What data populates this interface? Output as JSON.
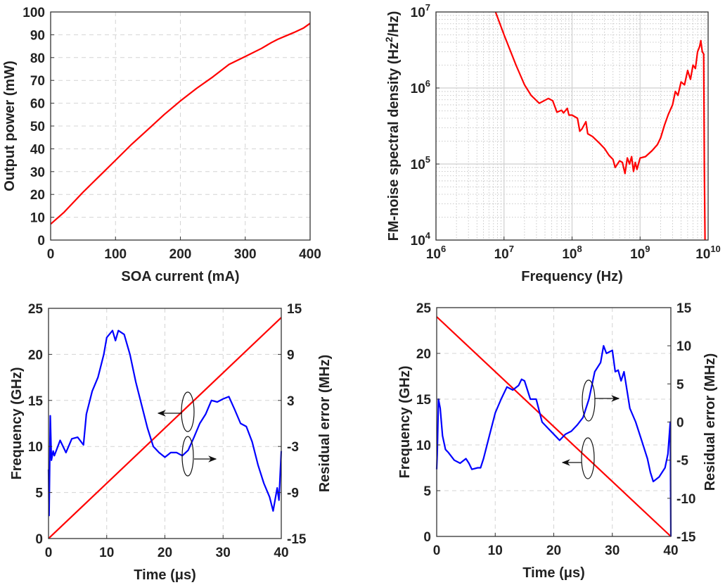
{
  "chart_data": [
    {
      "type": "line",
      "title": "",
      "xlabel": "SOA current (mA)",
      "ylabel": "Output  power (mW)",
      "xscale": "linear",
      "yscale": "linear",
      "xlim": [
        0,
        400
      ],
      "ylim": [
        0,
        100
      ],
      "xticks": [
        0,
        100,
        200,
        300,
        400
      ],
      "xtick_labels": [
        "0",
        "100",
        "200",
        "300",
        "400"
      ],
      "yticks": [
        0,
        10,
        20,
        30,
        40,
        50,
        60,
        70,
        80,
        90,
        100
      ],
      "ytick_labels": [
        "0",
        "10",
        "20",
        "30",
        "40",
        "50",
        "60",
        "70",
        "80",
        "90",
        "100"
      ],
      "grid": "dashed",
      "series": [
        {
          "name": "Output power",
          "axis": "left",
          "color": "#ff0000",
          "x": [
            0,
            20,
            50,
            75,
            100,
            125,
            150,
            175,
            200,
            225,
            250,
            275,
            300,
            325,
            340,
            350,
            375,
            390,
            400
          ],
          "y": [
            7,
            12,
            21,
            28,
            35,
            42,
            48.5,
            55,
            61,
            66.5,
            71.5,
            77,
            80.5,
            84,
            86.5,
            88,
            91,
            93,
            95
          ]
        }
      ]
    },
    {
      "type": "line",
      "title": "",
      "xlabel": "Frequency (Hz)",
      "ylabel_parts": [
        "FM-noise spectral density (Hz",
        "2",
        "/Hz)"
      ],
      "xscale": "log",
      "yscale": "log",
      "xlim": [
        1000000.0,
        10000000000.0
      ],
      "ylim": [
        10000.0,
        10000000.0
      ],
      "xticks": [
        1000000.0,
        10000000.0,
        100000000.0,
        1000000000.0,
        10000000000.0
      ],
      "xtick_labels": [
        {
          "base": "10",
          "exp": "6"
        },
        {
          "base": "10",
          "exp": "7"
        },
        {
          "base": "10",
          "exp": "8"
        },
        {
          "base": "10",
          "exp": "9"
        },
        {
          "base": "10",
          "exp": "10"
        }
      ],
      "yticks": [
        10000.0,
        100000.0,
        1000000.0,
        10000000.0
      ],
      "ytick_labels": [
        {
          "base": "10",
          "exp": "4"
        },
        {
          "base": "10",
          "exp": "5"
        },
        {
          "base": "10",
          "exp": "6"
        },
        {
          "base": "10",
          "exp": "7"
        }
      ],
      "grid": "log",
      "series": [
        {
          "name": "FM-noise PSD",
          "axis": "left",
          "color": "#ff0000",
          "x": [
            7500000.0,
            10000000.0,
            15000000.0,
            20000000.0,
            25000000.0,
            33000000.0,
            45000000.0,
            52000000.0,
            60000000.0,
            70000000.0,
            75000000.0,
            85000000.0,
            90000000.0,
            100000000.0,
            120000000.0,
            130000000.0,
            140000000.0,
            160000000.0,
            170000000.0,
            200000000.0,
            250000000.0,
            300000000.0,
            350000000.0,
            400000000.0,
            430000000.0,
            500000000.0,
            550000000.0,
            600000000.0,
            650000000.0,
            700000000.0,
            750000000.0,
            800000000.0,
            850000000.0,
            900000000.0,
            1000000000.0,
            1200000000.0,
            1500000000.0,
            1800000000.0,
            2000000000.0,
            2300000000.0,
            2600000000.0,
            3000000000.0,
            3300000000.0,
            3600000000.0,
            4000000000.0,
            4500000000.0,
            5000000000.0,
            5500000000.0,
            6000000000.0,
            6500000000.0,
            7000000000.0,
            7500000000.0,
            7800000000.0,
            8200000000.0,
            8600000000.0,
            8800000000.0,
            9000000000.0
          ],
          "y": [
            10000000.0,
            5000000.0,
            2000000.0,
            1100000.0,
            800000.0,
            630000.0,
            730000.0,
            680000.0,
            480000.0,
            510000.0,
            470000.0,
            540000.0,
            440000.0,
            440000.0,
            400000.0,
            270000.0,
            290000.0,
            360000.0,
            250000.0,
            230000.0,
            190000.0,
            160000.0,
            130000.0,
            115000.0,
            90000.0,
            110000.0,
            105000.0,
            75000.0,
            120000.0,
            100000.0,
            125000.0,
            80000.0,
            105000.0,
            85000.0,
            120000.0,
            125000.0,
            150000.0,
            180000.0,
            220000.0,
            330000.0,
            450000.0,
            600000.0,
            900000.0,
            800000.0,
            1200000.0,
            1100000.0,
            1700000.0,
            1300000.0,
            2000000.0,
            1800000.0,
            3000000.0,
            3500000.0,
            4200000.0,
            3000000.0,
            2800000.0,
            100000.0,
            10000.0
          ]
        }
      ]
    },
    {
      "type": "line",
      "title": "",
      "xlabel": "Time (μs)",
      "ylabel": "Frequency (GHz)",
      "ylabel_right": "Residual error (MHz)",
      "xscale": "linear",
      "yscale": "linear",
      "xlim": [
        0,
        40
      ],
      "ylim": [
        0,
        25
      ],
      "ylim_right": [
        -15,
        15
      ],
      "xticks": [
        0,
        10,
        20,
        30,
        40
      ],
      "xtick_labels": [
        "0",
        "10",
        "20",
        "30",
        "40"
      ],
      "yticks": [
        0,
        5,
        10,
        15,
        20,
        25
      ],
      "ytick_labels": [
        "0",
        "5",
        "10",
        "15",
        "20",
        "25"
      ],
      "yticks_right": [
        -15,
        -9,
        -3,
        3,
        9,
        15
      ],
      "ytick_labels_right": [
        "-15",
        "-9",
        "-3",
        "3",
        "9",
        "15"
      ],
      "grid": "dashed",
      "series": [
        {
          "name": "Frequency",
          "axis": "left",
          "color": "#ff0000",
          "x": [
            0,
            40
          ],
          "y": [
            0,
            24
          ]
        },
        {
          "name": "Residual error",
          "axis": "right",
          "color": "#0000ff",
          "x": [
            0,
            0.1,
            0.3,
            0.5,
            0.8,
            1,
            2,
            3,
            4,
            5,
            6,
            6.5,
            7.5,
            8.5,
            9.5,
            10,
            11,
            11.5,
            12,
            13,
            14,
            15,
            16,
            17,
            18,
            19,
            20,
            21,
            22,
            23,
            24,
            25,
            26,
            27,
            28,
            29,
            30,
            31,
            32,
            33,
            34,
            35,
            36,
            37,
            38,
            38.6,
            39.3,
            39.6,
            40
          ],
          "y": [
            -6,
            -12,
            1,
            -4.8,
            -3.6,
            -4.2,
            -2.2,
            -3.8,
            -2,
            -1.8,
            -2.8,
            1.2,
            4.2,
            6,
            9,
            11.2,
            12.1,
            10.8,
            12.1,
            11.6,
            9,
            5.4,
            2.4,
            -0.6,
            -3,
            -3.8,
            -4.4,
            -3.8,
            -3.8,
            -4.2,
            -3.5,
            -1.8,
            0,
            1.2,
            3,
            2.8,
            3.2,
            3.5,
            1.8,
            0,
            -0.4,
            -2.4,
            -5.4,
            -7.8,
            -9.6,
            -11.4,
            -8.4,
            -10,
            -3.6
          ]
        }
      ],
      "annotations": [
        "ellipse-arrow-left (Frequency axis)",
        "ellipse-arrow-right (Residual error axis)"
      ]
    },
    {
      "type": "line",
      "title": "",
      "xlabel": "Time (μs)",
      "ylabel": "Frequency (GHz)",
      "ylabel_right": "Residual error (MHz)",
      "xscale": "linear",
      "yscale": "linear",
      "xlim": [
        0,
        40
      ],
      "ylim": [
        0,
        25
      ],
      "ylim_right": [
        -15,
        15
      ],
      "xticks": [
        0,
        10,
        20,
        30,
        40
      ],
      "xtick_labels": [
        "0",
        "10",
        "20",
        "30",
        "40"
      ],
      "yticks": [
        0,
        5,
        10,
        15,
        20,
        25
      ],
      "ytick_labels": [
        "0",
        "5",
        "10",
        "15",
        "20",
        "25"
      ],
      "yticks_right": [
        -15,
        -10,
        -5,
        0,
        5,
        10,
        15
      ],
      "ytick_labels_right": [
        "-15",
        "-10",
        "-5",
        "0",
        "5",
        "10",
        "15"
      ],
      "grid": "dashed",
      "series": [
        {
          "name": "Frequency",
          "axis": "left",
          "color": "#ff0000",
          "x": [
            0,
            40
          ],
          "y": [
            24,
            0
          ]
        },
        {
          "name": "Residual error",
          "axis": "right",
          "color": "#0000ff",
          "x": [
            0,
            0.1,
            0.3,
            0.6,
            1,
            1.5,
            2,
            3,
            4,
            5,
            5.5,
            6,
            7,
            7.5,
            8,
            9,
            10,
            11,
            12,
            13,
            14,
            14.5,
            15,
            16,
            17,
            18,
            19,
            20,
            21,
            22,
            23,
            24,
            25,
            26,
            27,
            28,
            28.5,
            29,
            30,
            30.5,
            31,
            31.5,
            32,
            33,
            34,
            35,
            36,
            36.5,
            37,
            38,
            39,
            39.5,
            39.9,
            40
          ],
          "y": [
            -6.2,
            -4.2,
            3,
            1.8,
            -1.8,
            -3.6,
            -4,
            -5,
            -5.4,
            -4.8,
            -5.4,
            -6.2,
            -6,
            -6,
            -4.8,
            -1.8,
            1.2,
            3,
            4.6,
            4.2,
            4.8,
            5.6,
            5.4,
            3,
            3,
            0,
            -0.8,
            -1.6,
            -2.4,
            -1.6,
            -1.2,
            -0.4,
            0.6,
            3,
            6.6,
            7.8,
            10,
            9,
            9.4,
            6.6,
            6.8,
            5.4,
            6.6,
            1.8,
            0,
            -2.4,
            -4.8,
            -6.6,
            -7.8,
            -7.2,
            -6,
            -4.2,
            0,
            -15
          ]
        }
      ],
      "annotations": [
        "ellipse-arrow-right (Residual error axis)",
        "ellipse-arrow-left (Frequency axis)"
      ]
    }
  ]
}
